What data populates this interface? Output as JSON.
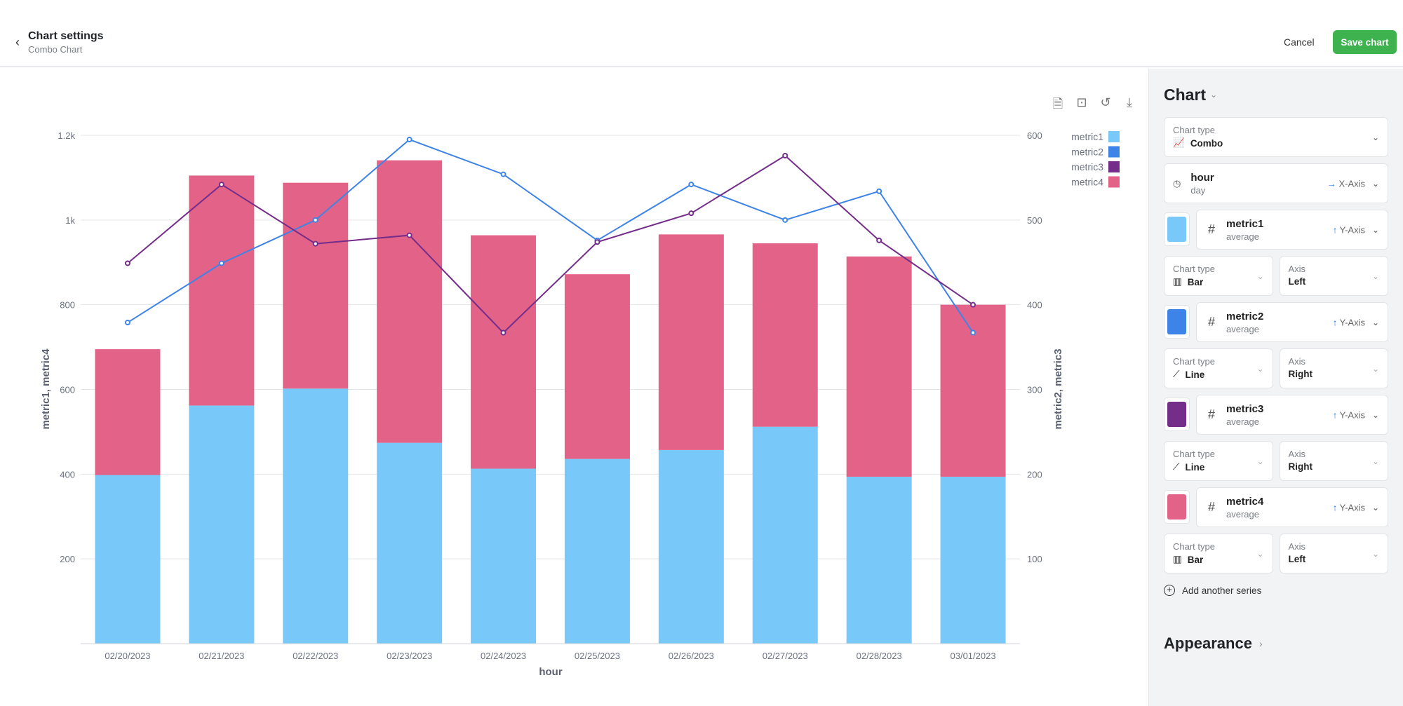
{
  "header": {
    "title": "Chart settings",
    "subtitle": "Combo Chart",
    "cancel": "Cancel",
    "save": "Save chart"
  },
  "toolbar_icons": [
    "document-icon",
    "crop-icon",
    "rotate-icon",
    "download-icon"
  ],
  "chart_data": {
    "type": "combo",
    "categories": [
      "02/20/2023",
      "02/21/2023",
      "02/22/2023",
      "02/23/2023",
      "02/24/2023",
      "02/25/2023",
      "02/26/2023",
      "02/27/2023",
      "02/28/2023",
      "03/01/2023"
    ],
    "xlabel": "hour",
    "ylabel_left": "metric1, metric4",
    "ylabel_right": "metric2, metric3",
    "ylim_left": [
      0,
      1200
    ],
    "ylim_right": [
      0,
      600
    ],
    "yticks_left": [
      {
        "v": 200,
        "label": "200"
      },
      {
        "v": 400,
        "label": "400"
      },
      {
        "v": 600,
        "label": "600"
      },
      {
        "v": 800,
        "label": "800"
      },
      {
        "v": 1000,
        "label": "1k"
      },
      {
        "v": 1200,
        "label": "1.2k"
      }
    ],
    "yticks_right": [
      {
        "v": 100,
        "label": "100"
      },
      {
        "v": 200,
        "label": "200"
      },
      {
        "v": 300,
        "label": "300"
      },
      {
        "v": 400,
        "label": "400"
      },
      {
        "v": 500,
        "label": "500"
      },
      {
        "v": 600,
        "label": "600"
      }
    ],
    "grid": true,
    "legend_position": "top-right",
    "series": [
      {
        "name": "metric1",
        "type": "bar",
        "stacked": true,
        "axis": "left",
        "color": "#78c9f9",
        "values": [
          398,
          562,
          602,
          474,
          413,
          436,
          457,
          512,
          394,
          394
        ]
      },
      {
        "name": "metric2",
        "type": "line",
        "axis": "right",
        "color": "#3d83e8",
        "values": [
          379,
          449,
          500,
          595,
          554,
          476,
          542,
          500,
          534,
          367
        ]
      },
      {
        "name": "metric3",
        "type": "line",
        "axis": "right",
        "color": "#742d89",
        "values": [
          449,
          542,
          472,
          482,
          367,
          474,
          508,
          576,
          476,
          400
        ]
      },
      {
        "name": "metric4",
        "type": "bar",
        "stacked": true,
        "axis": "left",
        "color": "#e36287",
        "values": [
          297,
          543,
          486,
          667,
          551,
          436,
          509,
          433,
          520,
          406
        ]
      }
    ]
  },
  "sidebar": {
    "section_title": "Chart",
    "chart_type": {
      "label": "Chart type",
      "value": "Combo"
    },
    "x_field": {
      "name": "hour",
      "sub": "day",
      "axis": "X-Axis"
    },
    "series": [
      {
        "name": "metric1",
        "sub": "average",
        "axis_tag": "Y-Axis",
        "color": "#78c9f9",
        "type_label": "Chart type",
        "type": "Bar",
        "axis_label": "Axis",
        "axis": "Left"
      },
      {
        "name": "metric2",
        "sub": "average",
        "axis_tag": "Y-Axis",
        "color": "#3d83e8",
        "type_label": "Chart type",
        "type": "Line",
        "axis_label": "Axis",
        "axis": "Right"
      },
      {
        "name": "metric3",
        "sub": "average",
        "axis_tag": "Y-Axis",
        "color": "#742d89",
        "type_label": "Chart type",
        "type": "Line",
        "axis_label": "Axis",
        "axis": "Right"
      },
      {
        "name": "metric4",
        "sub": "average",
        "axis_tag": "Y-Axis",
        "color": "#e36287",
        "type_label": "Chart type",
        "type": "Bar",
        "axis_label": "Axis",
        "axis": "Left"
      }
    ],
    "add_series": "Add another series",
    "appearance": "Appearance"
  }
}
